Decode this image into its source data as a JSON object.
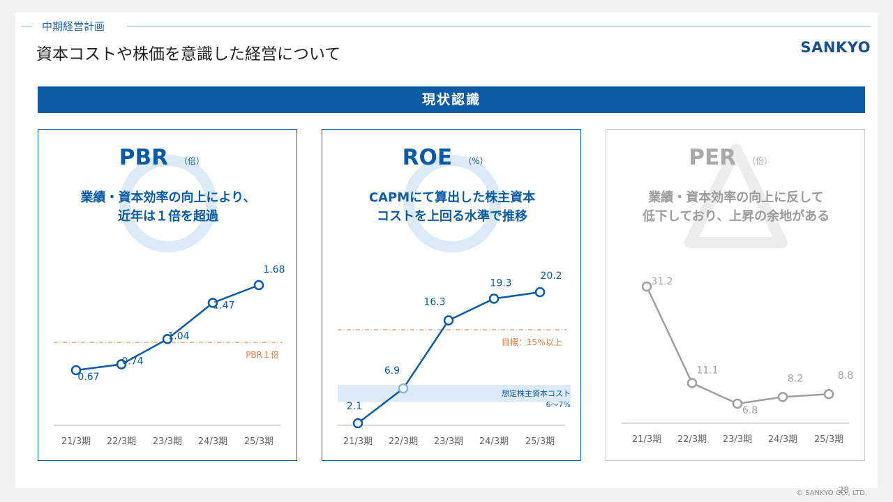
{
  "header": {
    "section": "中期経営計画",
    "title": "資本コストや株価を意識した経営について",
    "logo": "SANKYO"
  },
  "banner": "現状認識",
  "colors": {
    "blue": "#0b5aa6",
    "light_blue": "#dce9f6",
    "orange": "#e07a3c",
    "gray": "#9e9e9e"
  },
  "panels": [
    {
      "id": "pbr",
      "title": "PBR",
      "unit": "（倍）",
      "symbol": "circle-icon",
      "subtitle1": "業績・資本効率の向上により、",
      "subtitle2": "近年は１倍を超過",
      "categories": [
        "21/3期",
        "22/3期",
        "23/3期",
        "24/3期",
        "25/3期"
      ],
      "values": [
        0.67,
        0.74,
        1.04,
        1.47,
        1.68
      ],
      "labels": [
        "0.67",
        "0.74",
        "1.04",
        "1.47",
        "1.68"
      ],
      "ref_value": 1.0,
      "ref_label": "PBR１倍"
    },
    {
      "id": "roe",
      "title": "ROE",
      "unit": "（%）",
      "symbol": "circle-icon",
      "subtitle1": "CAPMにて算出した株主資本",
      "subtitle2": "コストを上回る水準で推移",
      "categories": [
        "21/3期",
        "22/3期",
        "23/3期",
        "24/3期",
        "25/3期"
      ],
      "values": [
        2.1,
        6.9,
        16.3,
        19.3,
        20.2
      ],
      "labels": [
        "2.1",
        "6.9",
        "16.3",
        "19.3",
        "20.2"
      ],
      "ref_value": 15,
      "ref_label": "目標：15％以上",
      "band": [
        6,
        7
      ],
      "band_label1": "想定株主資本コスト",
      "band_label2": "6〜7%"
    },
    {
      "id": "per",
      "title": "PER",
      "unit": "（倍）",
      "symbol": "triangle-icon",
      "subtitle1": "業績・資本効率の向上に反して",
      "subtitle2": "低下しており、上昇の余地がある",
      "categories": [
        "21/3期",
        "22/3期",
        "23/3期",
        "24/3期",
        "25/3期"
      ],
      "values": [
        31.2,
        11.1,
        6.8,
        8.2,
        8.8
      ],
      "labels": [
        "31.2",
        "11.1",
        "6.8",
        "8.2",
        "8.8"
      ]
    }
  ],
  "footer": {
    "page": "28",
    "copyright": "© SANKYO CO., LTD."
  }
}
